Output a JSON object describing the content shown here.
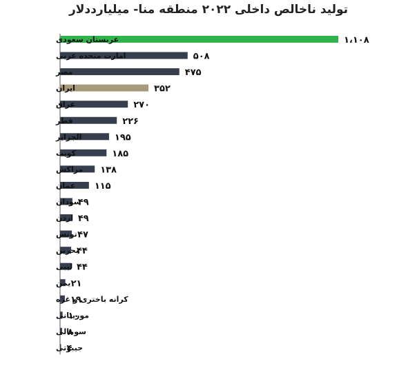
{
  "chart_data": {
    "type": "bar",
    "orientation": "horizontal",
    "title": "تولید ناخالص داخلی ۲۰۲۲ منطقه منا- میلیارددلار",
    "xlabel": "",
    "ylabel": "",
    "xlim": [
      0,
      1108
    ],
    "grid": false,
    "legend": "none",
    "categories": [
      "عربستان سعودی",
      "امارت متحده عربی",
      "مصر",
      "ایران",
      "عراق",
      "قطر",
      "الجزایر",
      "کویت",
      "مراکش",
      "عمان",
      "سودان",
      "اردن",
      "تونس",
      "بحرین",
      "لیبی",
      "یمن",
      "کرانه باختری و غزه",
      "موریتانی",
      "سومالی",
      "جیبوتی"
    ],
    "values": [
      1108,
      508,
      475,
      352,
      270,
      226,
      195,
      185,
      138,
      115,
      49,
      49,
      47,
      44,
      44,
      21,
      19,
      10,
      8,
      4
    ],
    "value_labels": [
      "۱،۱۰۸",
      "۵۰۸",
      "۴۷۵",
      "۳۵۲",
      "۲۷۰",
      "۲۲۶",
      "۱۹۵",
      "۱۸۵",
      "۱۳۸",
      "۱۱۵",
      "۴۹",
      "۴۹",
      "۴۷",
      "۴۴",
      "۴۴",
      "۲۱",
      "۱۹",
      "۱۰",
      "۸",
      "۴"
    ],
    "colors": {
      "default": "#373e4e",
      "عربستان سعودی": "#2fb34a",
      "ایران": "#a79a7c",
      "axis": "#555555"
    }
  }
}
